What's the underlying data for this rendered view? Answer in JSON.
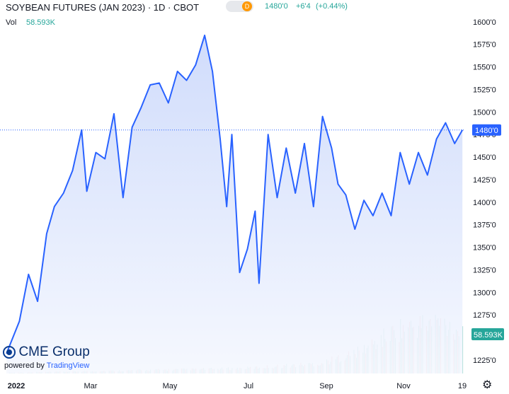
{
  "header": {
    "title": "SOYBEAN FUTURES (JAN 2023) · 1D · CBOT",
    "badge_letter": "D",
    "last_price": "1480'0",
    "change": "+6'4",
    "change_pct": "(+0.44%)",
    "vol_label": "Vol",
    "vol_value": "58.593K"
  },
  "branding": {
    "logo_text": "CME Group",
    "powered_by": "powered by",
    "tradingview": "TradingView"
  },
  "colors": {
    "line": "#2962ff",
    "area_top": "#c8d6fb",
    "area_bottom": "#f4f7fe",
    "volume_up": "#a3d9d3",
    "volume_down": "#f6b9b9",
    "price_label_bg": "#2962ff",
    "volume_label_bg": "#26a69a",
    "change_text": "#26a69a",
    "axis_text": "#131722"
  },
  "chart_data": {
    "type": "line",
    "title": "SOYBEAN FUTURES (JAN 2023) · 1D · CBOT",
    "x_ticks": [
      "2022",
      "Mar",
      "May",
      "Jul",
      "Sep",
      "Nov",
      "19"
    ],
    "y_ticks": [
      "1225'0",
      "1250'0",
      "1275'0",
      "1300'0",
      "1325'0",
      "1350'0",
      "1375'0",
      "1400'0",
      "1425'0",
      "1450'0",
      "1475'0",
      "1500'0",
      "1525'0",
      "1550'0",
      "1575'0",
      "1600'0"
    ],
    "y_ticks_values": [
      1225,
      1250,
      1275,
      1300,
      1325,
      1350,
      1375,
      1400,
      1425,
      1450,
      1475,
      1500,
      1525,
      1550,
      1575,
      1600
    ],
    "ylim": [
      1210,
      1610
    ],
    "x": [
      "2022-01-01",
      "2022-01-11",
      "2022-01-18",
      "2022-01-25",
      "2022-02-01",
      "2022-02-07",
      "2022-02-14",
      "2022-02-21",
      "2022-02-28",
      "2022-03-04",
      "2022-03-11",
      "2022-03-18",
      "2022-03-25",
      "2022-04-01",
      "2022-04-08",
      "2022-04-15",
      "2022-04-22",
      "2022-04-29",
      "2022-05-06",
      "2022-05-13",
      "2022-05-20",
      "2022-05-27",
      "2022-06-03",
      "2022-06-09",
      "2022-06-15",
      "2022-06-20",
      "2022-06-24",
      "2022-06-30",
      "2022-07-06",
      "2022-07-12",
      "2022-07-15",
      "2022-07-22",
      "2022-07-29",
      "2022-08-05",
      "2022-08-12",
      "2022-08-19",
      "2022-08-26",
      "2022-09-02",
      "2022-09-09",
      "2022-09-14",
      "2022-09-20",
      "2022-09-27",
      "2022-10-04",
      "2022-10-11",
      "2022-10-18",
      "2022-10-25",
      "2022-11-01",
      "2022-11-08",
      "2022-11-15",
      "2022-11-22",
      "2022-11-29",
      "2022-12-06",
      "2022-12-13",
      "2022-12-19"
    ],
    "values": [
      1232,
      1268,
      1320,
      1290,
      1365,
      1395,
      1410,
      1435,
      1480,
      1412,
      1455,
      1448,
      1498,
      1405,
      1483,
      1505,
      1530,
      1532,
      1510,
      1545,
      1535,
      1552,
      1585,
      1545,
      1470,
      1395,
      1475,
      1322,
      1348,
      1390,
      1310,
      1475,
      1405,
      1460,
      1410,
      1465,
      1395,
      1495,
      1460,
      1420,
      1408,
      1370,
      1402,
      1385,
      1410,
      1385,
      1455,
      1420,
      1455,
      1430,
      1470,
      1488,
      1465,
      1480
    ],
    "volume_max": 1,
    "volume": {
      "x": [
        "2022-01-03",
        "2022-01-31",
        "2022-02-28",
        "2022-03-31",
        "2022-04-29",
        "2022-05-31",
        "2022-06-30",
        "2022-07-29",
        "2022-08-31",
        "2022-09-30",
        "2022-10-31",
        "2022-11-30",
        "2022-12-19"
      ],
      "values": [
        0.01,
        0.02,
        0.03,
        0.04,
        0.05,
        0.06,
        0.07,
        0.1,
        0.14,
        0.3,
        0.62,
        0.72,
        0.6
      ]
    },
    "last_price_label": "1480'0",
    "last_volume_label": "58.593K",
    "grid": false,
    "legend": "none",
    "xlabel": "",
    "ylabel": ""
  }
}
